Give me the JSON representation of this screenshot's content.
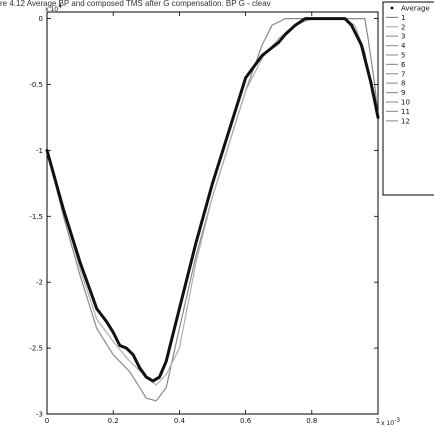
{
  "caption": "re 4.12 Average BP and composed TMS after G compensation. BP G - cleav",
  "chart_data": {
    "type": "line",
    "title": "",
    "xlabel": "",
    "ylabel": "",
    "xlim": [
      0,
      1
    ],
    "ylim": [
      -3,
      0.05
    ],
    "x_scale_label": "x 10",
    "x_scale_exp": "-3",
    "y_scale_label": "x 10",
    "y_scale_exp": "4",
    "xticks": [
      0,
      0.2,
      0.4,
      0.6,
      0.8,
      1
    ],
    "xtick_labels": [
      "0",
      "0.2",
      "0.4",
      "0.6",
      "0.8",
      "1"
    ],
    "yticks": [
      0,
      -0.5,
      -1,
      -1.5,
      -2,
      -2.5,
      -3
    ],
    "ytick_labels": [
      "0",
      "-0.5",
      "-1",
      "-1.5",
      "-2",
      "-2.5",
      "-3"
    ],
    "grid": false,
    "legend_position": "right, partially clipped",
    "legend": [
      "Average",
      "1",
      "2",
      "3",
      "4",
      "5",
      "6",
      "7",
      "8",
      "9",
      "10",
      "11",
      "12"
    ],
    "series": [
      {
        "name": "Average",
        "color": "#111111",
        "style": "thick",
        "x": [
          0,
          0.05,
          0.1,
          0.15,
          0.18,
          0.2,
          0.22,
          0.24,
          0.26,
          0.28,
          0.3,
          0.32,
          0.34,
          0.36,
          0.38,
          0.4,
          0.45,
          0.5,
          0.55,
          0.6,
          0.65,
          0.7,
          0.72,
          0.75,
          0.78,
          0.8,
          0.85,
          0.9,
          0.92,
          0.95,
          0.98,
          1.0
        ],
        "y": [
          -1.0,
          -1.45,
          -1.85,
          -2.2,
          -2.3,
          -2.38,
          -2.48,
          -2.5,
          -2.55,
          -2.65,
          -2.72,
          -2.75,
          -2.72,
          -2.6,
          -2.4,
          -2.2,
          -1.7,
          -1.25,
          -0.85,
          -0.45,
          -0.28,
          -0.18,
          -0.12,
          -0.05,
          0.0,
          0.0,
          0.0,
          0.0,
          -0.05,
          -0.2,
          -0.5,
          -0.75
        ]
      },
      {
        "name": "1",
        "color": "#8a8a8a",
        "style": "thin",
        "x": [
          0,
          0.05,
          0.1,
          0.15,
          0.2,
          0.25,
          0.28,
          0.3,
          0.33,
          0.36,
          0.4,
          0.45,
          0.5,
          0.55,
          0.6,
          0.65,
          0.68,
          0.72,
          0.75,
          0.8,
          0.85,
          0.9,
          0.93,
          0.96,
          0.97,
          0.99,
          1.0
        ],
        "y": [
          -1.0,
          -1.5,
          -1.95,
          -2.35,
          -2.55,
          -2.68,
          -2.8,
          -2.88,
          -2.9,
          -2.8,
          -2.35,
          -1.8,
          -1.35,
          -0.95,
          -0.55,
          -0.2,
          -0.05,
          0.0,
          0.0,
          0.0,
          0.0,
          0.0,
          0.0,
          0.0,
          -0.15,
          -0.5,
          -0.75
        ]
      },
      {
        "name": "2",
        "color": "#b0b0b0",
        "style": "thin",
        "x": [
          0,
          0.05,
          0.1,
          0.15,
          0.2,
          0.25,
          0.3,
          0.33,
          0.36,
          0.4,
          0.45,
          0.5,
          0.55,
          0.6,
          0.65,
          0.7,
          0.75,
          0.8,
          0.85,
          0.9,
          0.93,
          0.96,
          0.98,
          1.0
        ],
        "y": [
          -1.0,
          -1.45,
          -1.9,
          -2.28,
          -2.45,
          -2.6,
          -2.72,
          -2.78,
          -2.7,
          -2.5,
          -1.85,
          -1.35,
          -0.95,
          -0.55,
          -0.3,
          -0.15,
          -0.05,
          0.0,
          0.0,
          0.0,
          -0.05,
          -0.25,
          -0.55,
          -0.75
        ]
      }
    ]
  }
}
